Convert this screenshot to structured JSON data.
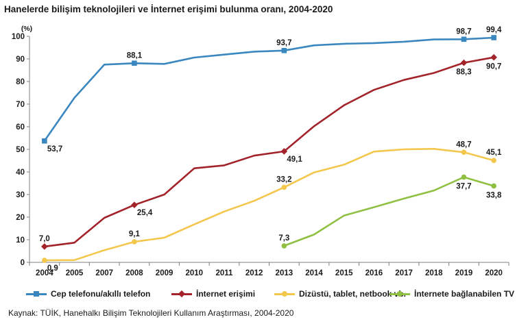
{
  "chart_data": {
    "type": "line",
    "title": "Hanelerde bilişim teknolojileri ve İnternet erişimi bulunma oranı, 2004-2020",
    "ylabel": "(%)",
    "xlabel": "",
    "ylim": [
      0,
      100
    ],
    "yticks": [
      "0",
      "10",
      "20",
      "30",
      "40",
      "50",
      "60",
      "70",
      "80",
      "90",
      "100"
    ],
    "categories": [
      "2004",
      "2005",
      "2007",
      "2008",
      "2009",
      "2010",
      "2011",
      "2012",
      "2013",
      "2014",
      "2015",
      "2016",
      "2017",
      "2018",
      "2019",
      "2020"
    ],
    "grid": false,
    "legend_position": "bottom",
    "series": [
      {
        "name": "Cep telefonu/akıllı telefon",
        "color": "#3a87c0",
        "marker": "square",
        "values": [
          53.7,
          72.8,
          87.5,
          88.1,
          87.8,
          90.6,
          91.9,
          93.2,
          93.7,
          96.0,
          96.7,
          97.0,
          97.6,
          98.6,
          98.7,
          99.4
        ],
        "labels": [
          {
            "i": 0,
            "text": "53,7",
            "pos": "right"
          },
          {
            "i": 3,
            "text": "88,1",
            "pos": "above"
          },
          {
            "i": 8,
            "text": "93,7",
            "pos": "above"
          },
          {
            "i": 14,
            "text": "98,7",
            "pos": "above"
          },
          {
            "i": 15,
            "text": "99,4",
            "pos": "above"
          }
        ]
      },
      {
        "name": "İnternet erişimi",
        "color": "#a3232b",
        "marker": "diamond",
        "values": [
          7.0,
          8.7,
          19.7,
          25.4,
          30.0,
          41.6,
          42.9,
          47.2,
          49.1,
          60.2,
          69.5,
          76.3,
          80.7,
          83.8,
          88.3,
          90.7
        ],
        "labels": [
          {
            "i": 0,
            "text": "7,0",
            "pos": "above"
          },
          {
            "i": 3,
            "text": "25,4",
            "pos": "right"
          },
          {
            "i": 8,
            "text": "49,1",
            "pos": "right"
          },
          {
            "i": 14,
            "text": "88,3",
            "pos": "below"
          },
          {
            "i": 15,
            "text": "90,7",
            "pos": "below"
          }
        ]
      },
      {
        "name": "Dizüstü, tablet, netbook vb.",
        "color": "#f3c64c",
        "marker": "circle",
        "values": [
          0.9,
          1.0,
          5.4,
          9.1,
          10.9,
          16.8,
          22.5,
          27.2,
          33.2,
          39.8,
          43.2,
          49.0,
          50.0,
          50.2,
          48.7,
          45.1
        ],
        "labels": [
          {
            "i": 0,
            "text": "0,9",
            "pos": "right"
          },
          {
            "i": 3,
            "text": "9,1",
            "pos": "above"
          },
          {
            "i": 8,
            "text": "33,2",
            "pos": "above"
          },
          {
            "i": 14,
            "text": "48,7",
            "pos": "above"
          },
          {
            "i": 15,
            "text": "45,1",
            "pos": "above"
          }
        ]
      },
      {
        "name": "İnternete bağlanabilen TV",
        "color": "#8fc041",
        "marker": "circle",
        "values": [
          null,
          null,
          null,
          null,
          null,
          null,
          null,
          null,
          7.3,
          12.3,
          20.7,
          24.4,
          28.2,
          31.8,
          37.7,
          33.8
        ],
        "labels": [
          {
            "i": 8,
            "text": "7,3",
            "pos": "above"
          },
          {
            "i": 14,
            "text": "37,7",
            "pos": "below"
          },
          {
            "i": 15,
            "text": "33,8",
            "pos": "below"
          }
        ]
      }
    ]
  },
  "source_text": "Kaynak: TÜİK, Hanehalkı Bilişim Teknolojileri Kullanım Araştırması, 2004-2020"
}
